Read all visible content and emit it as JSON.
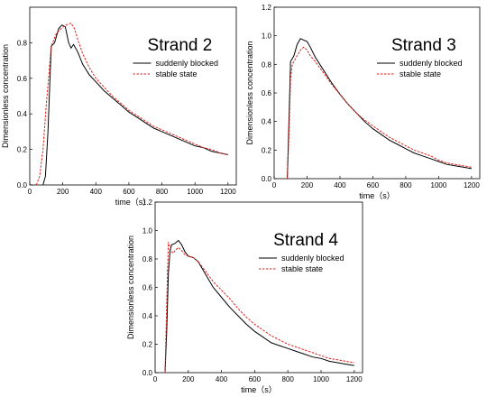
{
  "chart_data": [
    {
      "type": "line",
      "title": "Strand 2",
      "xlabel": "time（s）",
      "ylabel": "Dimensionless concentration",
      "xlim": [
        0,
        1250
      ],
      "ylim": [
        0,
        1.0
      ],
      "xticks": [
        0,
        200,
        400,
        600,
        800,
        1000,
        1200
      ],
      "yticks": [
        0.0,
        0.2,
        0.4,
        0.6,
        0.8
      ],
      "legend_position": "top-right",
      "series": [
        {
          "name": "suddenly blocked",
          "style": "solid",
          "color": "#000000",
          "x": [
            80,
            95,
            110,
            130,
            150,
            175,
            195,
            215,
            235,
            250,
            265,
            290,
            320,
            360,
            400,
            450,
            500,
            550,
            600,
            650,
            700,
            750,
            800,
            850,
            900,
            950,
            1000,
            1050,
            1100,
            1150,
            1200
          ],
          "y": [
            0.0,
            0.05,
            0.3,
            0.78,
            0.8,
            0.88,
            0.9,
            0.89,
            0.8,
            0.77,
            0.79,
            0.75,
            0.68,
            0.62,
            0.58,
            0.53,
            0.49,
            0.45,
            0.41,
            0.38,
            0.35,
            0.32,
            0.3,
            0.28,
            0.26,
            0.24,
            0.22,
            0.21,
            0.19,
            0.18,
            0.17
          ]
        },
        {
          "name": "stable state",
          "style": "dashed",
          "color": "#e0201c",
          "x": [
            40,
            60,
            80,
            100,
            130,
            160,
            190,
            220,
            250,
            270,
            290,
            320,
            360,
            400,
            450,
            500,
            550,
            600,
            650,
            700,
            750,
            800,
            850,
            900,
            950,
            1000,
            1050,
            1100,
            1150,
            1200
          ],
          "y": [
            0.0,
            0.05,
            0.2,
            0.45,
            0.78,
            0.85,
            0.88,
            0.9,
            0.91,
            0.88,
            0.82,
            0.74,
            0.66,
            0.6,
            0.55,
            0.5,
            0.46,
            0.42,
            0.39,
            0.36,
            0.33,
            0.31,
            0.29,
            0.27,
            0.25,
            0.23,
            0.21,
            0.2,
            0.18,
            0.17
          ]
        }
      ]
    },
    {
      "type": "line",
      "title": "Strand 3",
      "xlabel": "time（s）",
      "ylabel": "Dimensionless concentration",
      "xlim": [
        0,
        1250
      ],
      "ylim": [
        0,
        1.2
      ],
      "xticks": [
        0,
        200,
        400,
        600,
        800,
        1000,
        1200
      ],
      "yticks": [
        0.0,
        0.2,
        0.4,
        0.6,
        0.8,
        1.0,
        1.2
      ],
      "legend_position": "top-right",
      "series": [
        {
          "name": "suddenly blocked",
          "style": "solid",
          "color": "#000000",
          "x": [
            80,
            90,
            100,
            110,
            120,
            140,
            160,
            180,
            200,
            220,
            250,
            300,
            350,
            400,
            450,
            500,
            550,
            600,
            650,
            700,
            750,
            800,
            850,
            900,
            950,
            1000,
            1050,
            1100,
            1150,
            1200
          ],
          "y": [
            0.0,
            0.4,
            0.82,
            0.84,
            0.86,
            0.94,
            0.98,
            0.97,
            0.96,
            0.92,
            0.85,
            0.76,
            0.67,
            0.59,
            0.52,
            0.46,
            0.4,
            0.35,
            0.31,
            0.27,
            0.24,
            0.21,
            0.18,
            0.16,
            0.14,
            0.12,
            0.1,
            0.09,
            0.08,
            0.07
          ]
        },
        {
          "name": "stable state",
          "style": "dashed",
          "color": "#e0201c",
          "x": [
            80,
            90,
            100,
            110,
            120,
            140,
            160,
            180,
            200,
            220,
            250,
            300,
            350,
            400,
            450,
            500,
            550,
            600,
            650,
            700,
            750,
            800,
            850,
            900,
            950,
            1000,
            1050,
            1100,
            1150,
            1200
          ],
          "y": [
            0.0,
            0.3,
            0.7,
            0.8,
            0.82,
            0.86,
            0.9,
            0.92,
            0.9,
            0.86,
            0.82,
            0.74,
            0.66,
            0.59,
            0.52,
            0.46,
            0.41,
            0.37,
            0.33,
            0.29,
            0.26,
            0.23,
            0.2,
            0.18,
            0.16,
            0.13,
            0.11,
            0.1,
            0.09,
            0.08
          ]
        }
      ]
    },
    {
      "type": "line",
      "title": "Strand 4",
      "xlabel": "time（s）",
      "ylabel": "Dimensionless concentration",
      "xlim": [
        0,
        1250
      ],
      "ylim": [
        0,
        1.2
      ],
      "xticks": [
        0,
        200,
        400,
        600,
        800,
        1000,
        1200
      ],
      "yticks": [
        0.0,
        0.2,
        0.4,
        0.6,
        0.8,
        1.0,
        1.2
      ],
      "legend_position": "top-right",
      "series": [
        {
          "name": "suddenly blocked",
          "style": "solid",
          "color": "#000000",
          "x": [
            60,
            70,
            80,
            90,
            100,
            120,
            140,
            160,
            180,
            200,
            230,
            260,
            300,
            350,
            400,
            450,
            500,
            550,
            600,
            650,
            700,
            750,
            800,
            850,
            900,
            950,
            1000,
            1050,
            1100,
            1150,
            1200
          ],
          "y": [
            0.0,
            0.3,
            0.7,
            0.86,
            0.9,
            0.91,
            0.93,
            0.9,
            0.85,
            0.82,
            0.81,
            0.78,
            0.7,
            0.6,
            0.53,
            0.46,
            0.4,
            0.34,
            0.29,
            0.25,
            0.21,
            0.19,
            0.17,
            0.15,
            0.13,
            0.11,
            0.1,
            0.08,
            0.07,
            0.06,
            0.05
          ]
        },
        {
          "name": "stable state",
          "style": "dashed",
          "color": "#e0201c",
          "x": [
            60,
            70,
            80,
            90,
            100,
            110,
            120,
            140,
            160,
            180,
            200,
            230,
            260,
            300,
            350,
            400,
            450,
            500,
            550,
            600,
            650,
            700,
            750,
            800,
            850,
            900,
            950,
            1000,
            1050,
            1100,
            1150,
            1200
          ],
          "y": [
            0.0,
            0.5,
            0.92,
            0.88,
            0.85,
            0.84,
            0.86,
            0.88,
            0.86,
            0.83,
            0.82,
            0.81,
            0.78,
            0.72,
            0.64,
            0.58,
            0.52,
            0.45,
            0.39,
            0.34,
            0.3,
            0.26,
            0.23,
            0.2,
            0.18,
            0.16,
            0.14,
            0.12,
            0.1,
            0.09,
            0.08,
            0.07
          ]
        }
      ]
    }
  ]
}
